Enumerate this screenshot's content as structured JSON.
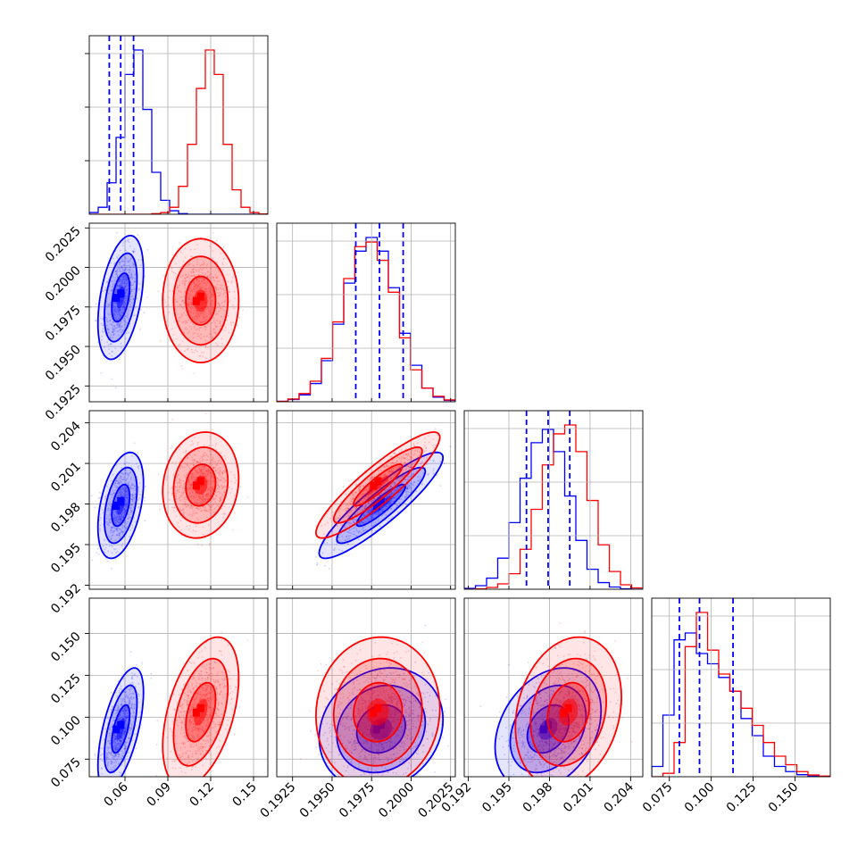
{
  "chart_data": {
    "type": "corner",
    "grid": true,
    "parameters": [
      {
        "range": [
          0.035,
          0.16
        ],
        "ticks": [
          0.06,
          0.09,
          0.12,
          0.15
        ],
        "tick_labels": [
          "0.06",
          "0.09",
          "0.12",
          "0.15"
        ]
      },
      {
        "range": [
          0.1915,
          0.2028
        ],
        "ticks": [
          0.1925,
          0.195,
          0.1975,
          0.2,
          0.2025
        ],
        "tick_labels": [
          "0.1925",
          "0.1950",
          "0.1975",
          "0.2000",
          "0.2025"
        ]
      },
      {
        "range": [
          0.1917,
          0.2049
        ],
        "ticks": [
          0.192,
          0.195,
          0.198,
          0.201,
          0.204
        ],
        "tick_labels": [
          "0.192",
          "0.195",
          "0.198",
          "0.201",
          "0.204"
        ]
      },
      {
        "range": [
          0.0645,
          0.171
        ],
        "ticks": [
          0.075,
          0.1,
          0.125,
          0.15
        ],
        "tick_labels": [
          "0.075",
          "0.100",
          "0.125",
          "0.150"
        ]
      }
    ],
    "series": [
      {
        "color": "#0000ff",
        "mean": [
          0.057,
          0.1981,
          0.1979,
          0.093
        ],
        "std": [
          0.0057,
          0.0014,
          0.0014,
          0.013
        ],
        "quantiles": [
          [
            0.049,
            0.057,
            0.066
          ],
          [
            0.1965,
            0.198,
            0.1995
          ],
          [
            0.1963,
            0.1979,
            0.1995
          ],
          [
            0.081,
            0.093,
            0.113
          ]
        ]
      },
      {
        "color": "#ff0000",
        "mean": [
          0.113,
          0.1979,
          0.1994,
          0.103
        ],
        "std": [
          0.0095,
          0.0014,
          0.0014,
          0.016
        ],
        "quantiles": []
      }
    ],
    "correlations": {
      "blue": [
        [
          1,
          0.42,
          0.42,
          0.6
        ],
        [
          0.42,
          1,
          0.9,
          0.15
        ],
        [
          0.42,
          0.9,
          1,
          0.3
        ],
        [
          0.6,
          0.15,
          0.3,
          1
        ]
      ],
      "red": [
        [
          1,
          0.0,
          0.12,
          0.45
        ],
        [
          0.0,
          1,
          0.9,
          0.05
        ],
        [
          0.12,
          0.9,
          1,
          0.2
        ],
        [
          0.45,
          0.05,
          0.2,
          1
        ]
      ]
    },
    "histograms": [
      {
        "blue": [
          0.5,
          2,
          9,
          22,
          40,
          47,
          30,
          12,
          4,
          1,
          0.2,
          0,
          0,
          0,
          0,
          0,
          0,
          0,
          0,
          0
        ],
        "red": [
          0,
          0,
          0,
          0,
          0,
          0,
          0,
          0.2,
          0.5,
          2,
          8,
          20,
          36,
          47,
          40,
          20,
          7,
          2,
          0.5,
          0.1
        ]
      },
      {
        "blue": [
          0.1,
          0.5,
          1.5,
          4,
          9,
          17,
          26,
          33,
          36,
          33,
          25,
          15,
          8,
          3,
          1,
          0.3
        ],
        "red": [
          0.1,
          0.6,
          1.8,
          4.5,
          9.5,
          17.5,
          27,
          34,
          35,
          31,
          24,
          14,
          7,
          3,
          1.2,
          0.4
        ]
      },
      {
        "blue": [
          0.2,
          0.8,
          2.5,
          7,
          15,
          25,
          33,
          36,
          31,
          21,
          11,
          4.5,
          1.5,
          0.5,
          0.1,
          0
        ],
        "red": [
          0,
          0.1,
          0.4,
          1.2,
          3.5,
          9,
          18,
          28,
          35,
          37,
          31,
          20,
          10,
          4,
          1,
          0.3
        ]
      },
      {
        "blue": [
          3,
          18,
          40,
          42,
          36,
          33,
          29,
          25,
          17,
          12,
          6,
          3,
          1.5,
          0.6,
          0.2,
          0
        ],
        "red": [
          0,
          1,
          10,
          38,
          48,
          37,
          30,
          25,
          20,
          15,
          10,
          6,
          3.5,
          1.5,
          0.5,
          0.2
        ]
      }
    ]
  }
}
